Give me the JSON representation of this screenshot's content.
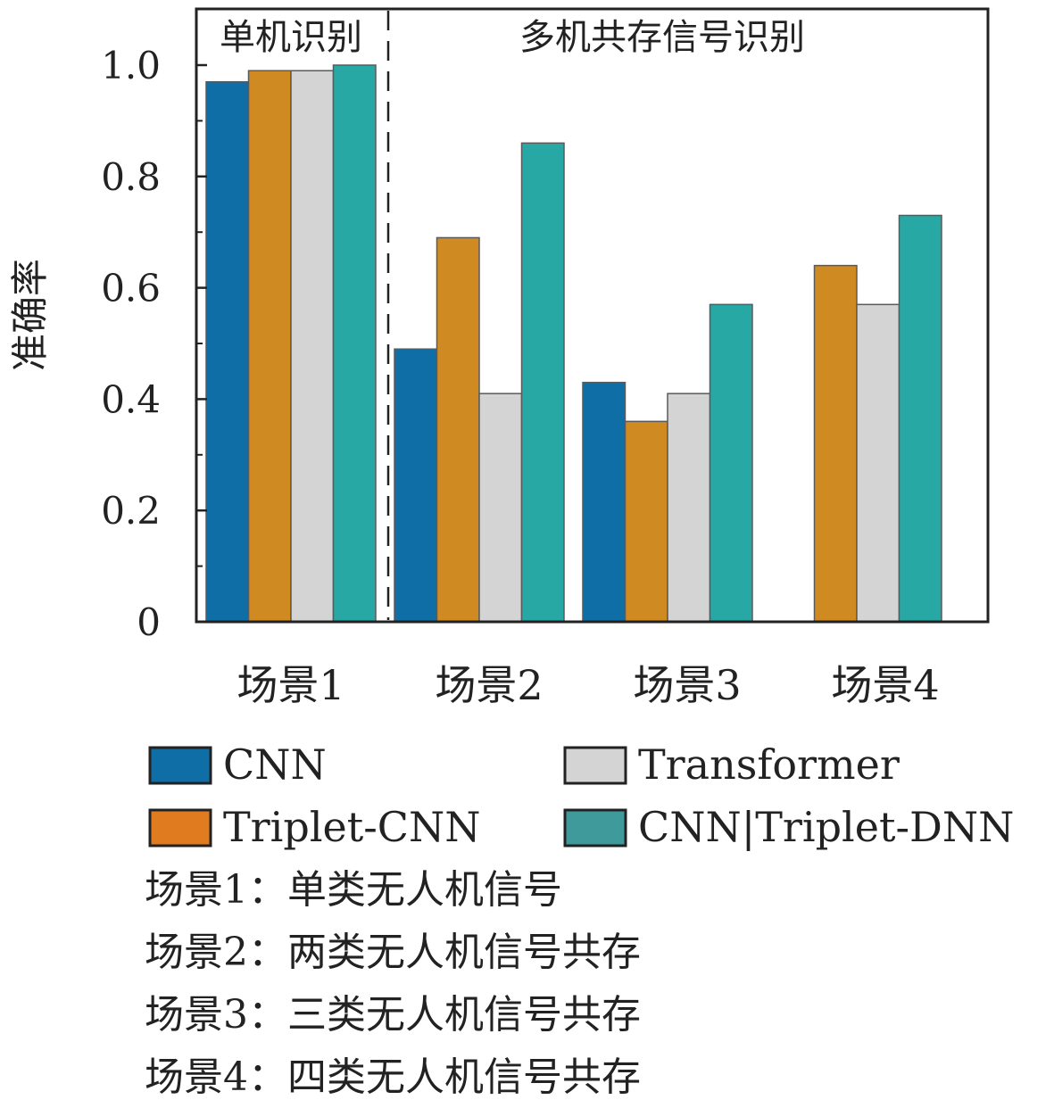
{
  "chart_data": {
    "type": "bar",
    "ylabel": "准确率",
    "ylim": [
      0,
      1.0
    ],
    "yticks": [
      0,
      0.2,
      0.4,
      0.6,
      0.8,
      1.0
    ],
    "ytick_labels": [
      "0",
      "0.2",
      "0.4",
      "0.6",
      "0.8",
      "1.0"
    ],
    "categories": [
      "场景1",
      "场景2",
      "场景3",
      "场景4"
    ],
    "regions": [
      {
        "label": "单机识别",
        "categories": [
          "场景1"
        ]
      },
      {
        "label": "多机共存信号识别",
        "categories": [
          "场景2",
          "场景3",
          "场景4"
        ]
      }
    ],
    "series": [
      {
        "name": "CNN",
        "color": "#0f6ea6",
        "values": [
          0.97,
          0.49,
          0.43,
          null
        ]
      },
      {
        "name": "Triplet-CNN",
        "color": "#d08a22",
        "values": [
          0.99,
          0.69,
          0.36,
          0.64
        ]
      },
      {
        "name": "Transformer",
        "color": "#d4d4d4",
        "values": [
          0.99,
          0.41,
          0.41,
          0.57
        ]
      },
      {
        "name": "CNN|Triplet-DNN",
        "color": "#27a8a4",
        "values": [
          1.0,
          0.86,
          0.57,
          0.73
        ]
      }
    ],
    "legend": {
      "placement": "bottom",
      "entries": [
        {
          "label": "CNN",
          "color": "#0f6ea6"
        },
        {
          "label": "Transformer",
          "color": "#d4d4d4"
        },
        {
          "label": "Triplet-CNN",
          "color": "#e07b20"
        },
        {
          "label": "CNN|Triplet-DNN",
          "color": "#3f9a9c"
        }
      ]
    }
  },
  "notes": [
    "场景1：单类无人机信号",
    "场景2：两类无人机信号共存",
    "场景3：三类无人机信号共存",
    "场景4：四类无人机信号共存"
  ]
}
